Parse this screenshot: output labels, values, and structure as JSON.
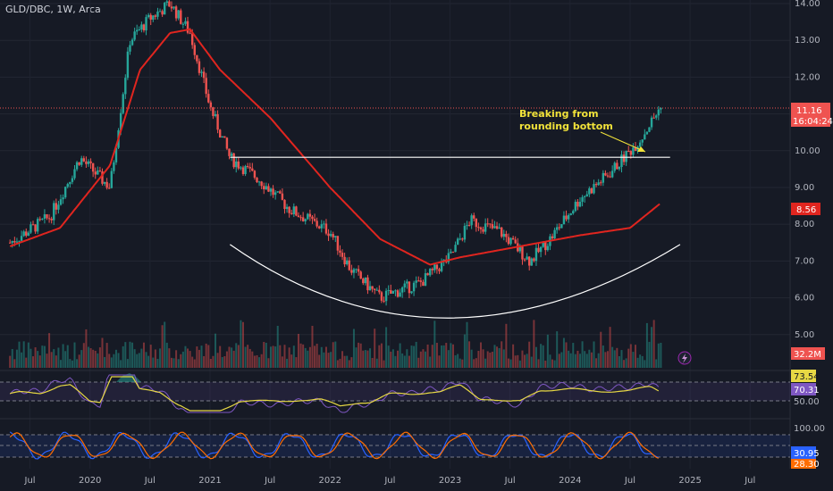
{
  "header": {
    "symbol_line": "GLD/DBC, 1W, Arca"
  },
  "colors": {
    "background": "#161a25",
    "up": "#26a69a",
    "down": "#ef5350",
    "ma": "#e0251f",
    "rsi_line": "#7e57c2",
    "rsi_ma": "#e7d844",
    "stoch_k": "#2962ff",
    "stoch_d": "#ff6d00",
    "annotation": "#f2e33a"
  },
  "chart_data": {
    "type": "candlestick",
    "price_axis": {
      "ylim": [
        4.8,
        14.0
      ],
      "ticks": [
        "14.00",
        "13.00",
        "12.00",
        "11.00",
        "10.00",
        "9.00",
        "8.00",
        "7.00",
        "6.00",
        "5.00"
      ]
    },
    "x_axis": {
      "ticks": [
        "Jul",
        "2020",
        "Jul",
        "2021",
        "Jul",
        "2022",
        "Jul",
        "2023",
        "Jul",
        "2024",
        "Jul",
        "2025",
        "Jul"
      ]
    },
    "price_path": [
      [
        "2019-05",
        7.5
      ],
      [
        "2019-09",
        8.2
      ],
      [
        "2019-12",
        9.8
      ],
      [
        "2020-03",
        9.0
      ],
      [
        "2020-04",
        11.0
      ],
      [
        "2020-05",
        13.0
      ],
      [
        "2020-07",
        13.6
      ],
      [
        "2020-09",
        14.0
      ],
      [
        "2020-11",
        13.2
      ],
      [
        "2021-01",
        11.2
      ],
      [
        "2021-03",
        9.8
      ],
      [
        "2021-06",
        9.2
      ],
      [
        "2021-09",
        8.4
      ],
      [
        "2022-01",
        7.8
      ],
      [
        "2022-03",
        6.8
      ],
      [
        "2022-06",
        6.0
      ],
      [
        "2022-10",
        6.4
      ],
      [
        "2023-01",
        7.1
      ],
      [
        "2023-03",
        8.1
      ],
      [
        "2023-06",
        7.8
      ],
      [
        "2023-09",
        7.0
      ],
      [
        "2023-11",
        7.6
      ],
      [
        "2024-02",
        8.7
      ],
      [
        "2024-05",
        9.4
      ],
      [
        "2024-08",
        10.3
      ],
      [
        "2024-10",
        11.16
      ]
    ],
    "moving_average": [
      [
        "2019-05",
        7.4
      ],
      [
        "2019-10",
        7.9
      ],
      [
        "2020-03",
        9.6
      ],
      [
        "2020-06",
        12.2
      ],
      [
        "2020-09",
        13.2
      ],
      [
        "2020-11",
        13.3
      ],
      [
        "2021-02",
        12.2
      ],
      [
        "2021-07",
        10.9
      ],
      [
        "2022-01",
        9.0
      ],
      [
        "2022-06",
        7.6
      ],
      [
        "2022-11",
        6.9
      ],
      [
        "2023-02",
        7.1
      ],
      [
        "2023-08",
        7.4
      ],
      [
        "2024-02",
        7.7
      ],
      [
        "2024-07",
        7.9
      ],
      [
        "2024-10",
        8.56
      ]
    ],
    "resistance_line": {
      "from": "2021-03",
      "to": "2024-11",
      "value": 9.82
    },
    "rounding_bottom": {
      "from": "2021-03",
      "mid": "2022-12",
      "to": "2024-12",
      "start": 7.45,
      "bottom": 5.45,
      "end": 7.45
    },
    "annotation": {
      "text_line1": "Breaking from",
      "text_line2": "rounding bottom"
    },
    "last_price": "11.16",
    "countdown": "16:04:24",
    "ma_last": "8.56",
    "volume": {
      "last": "32.2M"
    },
    "rsi": {
      "value": "70.31",
      "ma": "73.54",
      "level": "50.00"
    },
    "stoch": {
      "axis": "100.00",
      "k": "30.95",
      "d": "28.30"
    }
  }
}
